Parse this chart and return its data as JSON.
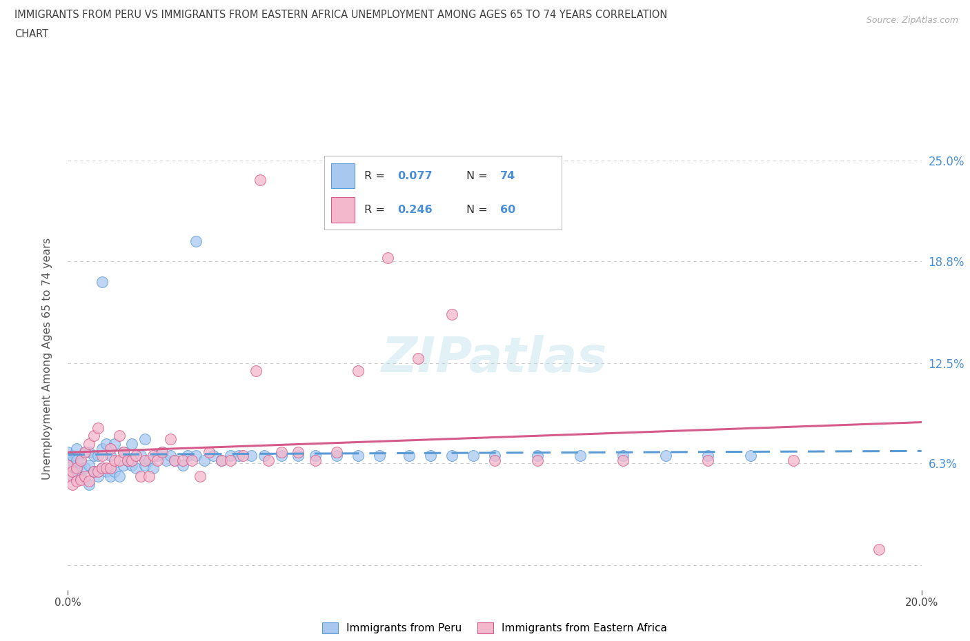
{
  "title_line1": "IMMIGRANTS FROM PERU VS IMMIGRANTS FROM EASTERN AFRICA UNEMPLOYMENT AMONG AGES 65 TO 74 YEARS CORRELATION",
  "title_line2": "CHART",
  "source": "Source: ZipAtlas.com",
  "ylabel": "Unemployment Among Ages 65 to 74 years",
  "xlim": [
    0.0,
    0.2
  ],
  "ylim": [
    -0.015,
    0.27
  ],
  "yticks": [
    0.0,
    0.063,
    0.125,
    0.188,
    0.25
  ],
  "ytick_labels": [
    "",
    "6.3%",
    "12.5%",
    "18.8%",
    "25.0%"
  ],
  "series1_label": "Immigrants from Peru",
  "series1_R": 0.077,
  "series1_N": 74,
  "series1_color": "#a8c8f0",
  "series1_edge": "#5b9bd5",
  "series2_label": "Immigrants from Eastern Africa",
  "series2_R": 0.246,
  "series2_N": 60,
  "series2_color": "#f4b8cc",
  "series2_edge": "#d45b8a",
  "watermark": "ZIPatlas",
  "background_color": "#ffffff",
  "grid_color": "#cccccc",
  "title_color": "#404040",
  "axis_label_color": "#555555",
  "tick_label_color_right": "#4a90d9",
  "legend_R_color": "#4a90d9",
  "trend1_color": "#5b9bd5",
  "trend2_color": "#d45b8a"
}
